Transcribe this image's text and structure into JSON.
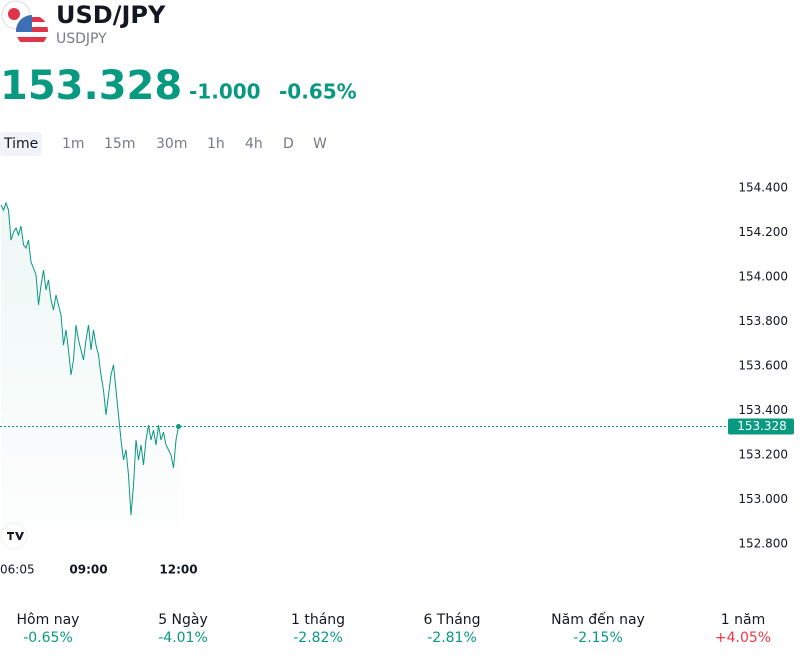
{
  "header": {
    "symbol": "USD/JPY",
    "ticker": "USDJPY",
    "price": "153.328",
    "change": "-1.000",
    "change_pct": "-0.65%"
  },
  "timeframes": [
    "Time",
    "1m",
    "15m",
    "30m",
    "1h",
    "4h",
    "D",
    "W"
  ],
  "chart_data": {
    "type": "line",
    "categories": [
      "06:05",
      null,
      null,
      null,
      null,
      null,
      null,
      null,
      null,
      null,
      null,
      null,
      null,
      null,
      null,
      null,
      null,
      null,
      null,
      null,
      null,
      null,
      null,
      null,
      null,
      null,
      null,
      null,
      null,
      null,
      null,
      null,
      null,
      null,
      null,
      "09:00",
      null,
      null,
      null,
      null,
      null,
      null,
      null,
      null,
      null,
      null,
      null,
      null,
      null,
      null,
      null,
      null,
      null,
      null,
      null,
      null,
      null,
      null,
      null,
      null,
      null,
      null,
      null,
      null,
      null,
      null,
      null,
      null,
      null,
      null,
      null,
      "12:00"
    ],
    "series": [
      {
        "name": "USDJPY",
        "color": "#089981",
        "values": [
          154.324,
          154.301,
          154.333,
          154.301,
          154.166,
          154.202,
          154.22,
          154.189,
          154.229,
          154.144,
          154.13,
          154.166,
          154.067,
          154.04,
          154.009,
          153.874,
          153.964,
          154.031,
          153.942,
          153.987,
          153.897,
          153.852,
          153.919,
          153.874,
          153.829,
          153.694,
          153.762,
          153.672,
          153.56,
          153.627,
          153.784,
          153.717,
          153.672,
          153.627,
          153.717,
          153.784,
          153.672,
          153.762,
          153.694,
          153.65,
          153.56,
          153.492,
          153.38,
          153.47,
          153.56,
          153.605,
          153.492,
          153.38,
          153.268,
          153.178,
          153.223,
          153.11,
          152.93,
          153.065,
          153.268,
          153.178,
          153.245,
          153.155,
          153.268,
          153.335,
          153.268,
          153.312,
          153.245,
          153.335,
          153.268,
          153.303,
          153.245,
          153.223,
          153.2,
          153.142,
          153.268,
          153.328
        ]
      }
    ],
    "ylim": [
      152.7,
      154.5
    ],
    "yticks": [
      {
        "value": 152.8,
        "label": "152.800"
      },
      {
        "value": 153.0,
        "label": "153.000"
      },
      {
        "value": 153.2,
        "label": "153.200"
      },
      {
        "value": 153.4,
        "label": "153.400"
      },
      {
        "value": 153.6,
        "label": "153.600"
      },
      {
        "value": 153.8,
        "label": "153.800"
      },
      {
        "value": 154.0,
        "label": "154.000"
      },
      {
        "value": 154.2,
        "label": "154.200"
      },
      {
        "value": 154.4,
        "label": "154.400"
      }
    ]
  },
  "performance": [
    {
      "period": "Hôm nay",
      "change": "-0.65%",
      "color": "#089981"
    },
    {
      "period": "5 Ngày",
      "change": "-4.01%",
      "color": "#089981"
    },
    {
      "period": "1 tháng",
      "change": "-2.82%",
      "color": "#089981"
    },
    {
      "period": "6 Tháng",
      "change": "-2.81%",
      "color": "#089981"
    },
    {
      "period": "Năm đến nay",
      "change": "-2.15%",
      "color": "#089981"
    },
    {
      "period": "1 năm",
      "change": "+4.05%",
      "color": "#f23645"
    }
  ]
}
